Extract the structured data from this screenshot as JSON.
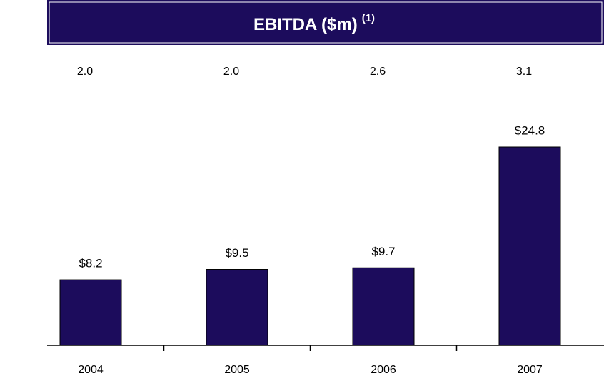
{
  "chart_data": {
    "type": "bar",
    "title": "EBITDA ($m)",
    "title_note": "(1)",
    "categories": [
      "2004",
      "2005",
      "2006",
      "2007"
    ],
    "values": [
      8.2,
      9.5,
      9.7,
      24.8
    ],
    "value_labels": [
      "$8.2",
      "$9.5",
      "$9.7",
      "$24.8"
    ],
    "annotations": [
      "2.0",
      "2.0",
      "2.6",
      "3.1"
    ],
    "color": "#1c0c5c"
  }
}
